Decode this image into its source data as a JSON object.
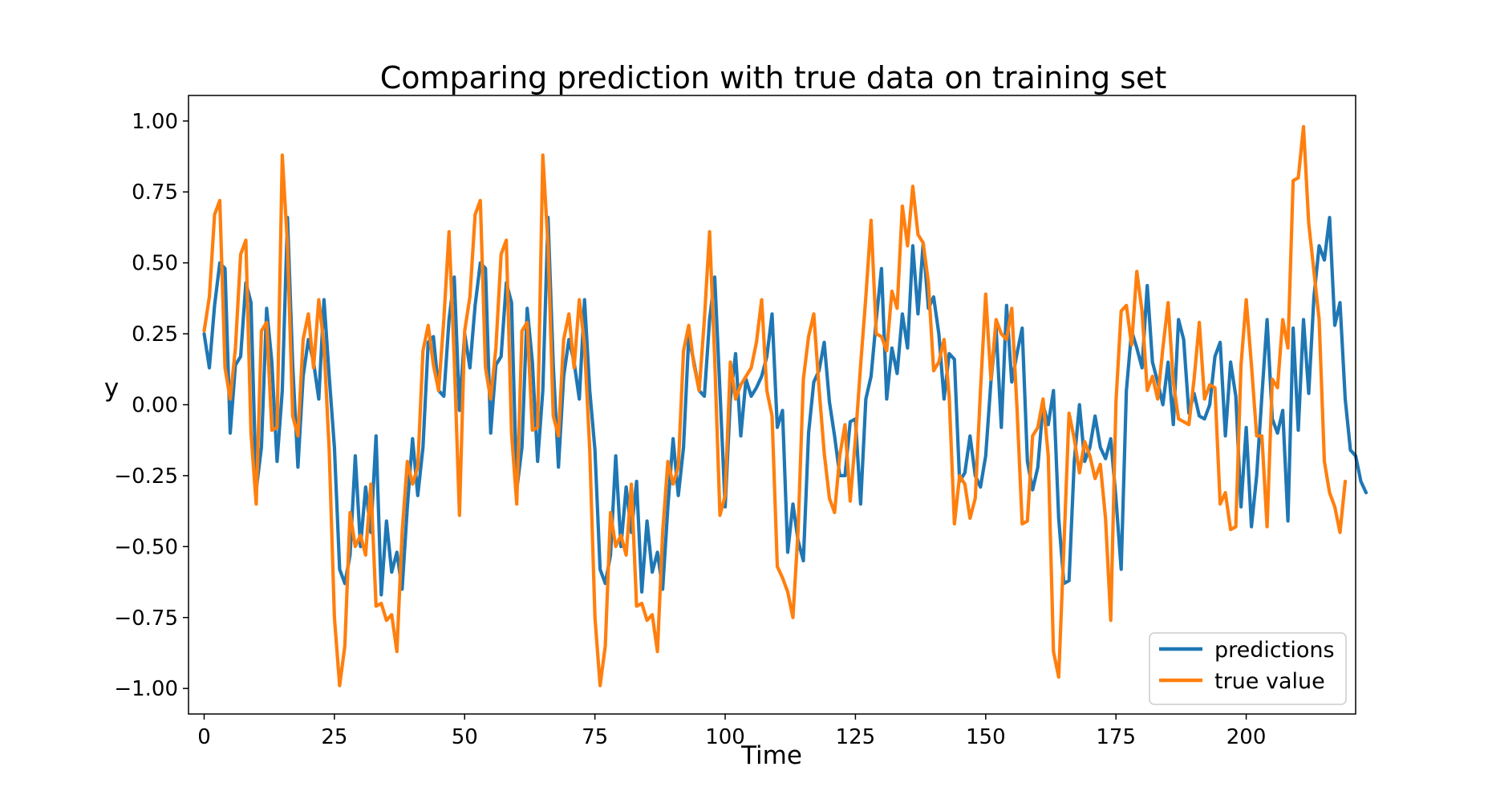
{
  "chart_data": {
    "type": "line",
    "title": "Comparing prediction with true data on training set",
    "xlabel": "Time",
    "ylabel": "y",
    "xlim": [
      -3,
      221
    ],
    "ylim": [
      -1.09,
      1.09
    ],
    "xticks": [
      0,
      25,
      50,
      75,
      100,
      125,
      150,
      175,
      200
    ],
    "xtick_labels": [
      "0",
      "25",
      "50",
      "75",
      "100",
      "125",
      "150",
      "175",
      "200"
    ],
    "yticks": [
      1.0,
      0.75,
      0.5,
      0.25,
      0.0,
      -0.25,
      -0.5,
      -0.75,
      -1.0
    ],
    "ytick_labels": [
      "1.00",
      "0.75",
      "0.50",
      "0.25",
      "0.00",
      "−0.25",
      "−0.50",
      "−0.75",
      "−1.00"
    ],
    "grid": false,
    "legend_position": "lower-right",
    "series": [
      {
        "name": "predictions",
        "color": "#1f77b4",
        "x_start": 0,
        "values": [
          0.25,
          0.13,
          0.35,
          0.5,
          0.48,
          -0.1,
          0.14,
          0.17,
          0.43,
          0.36,
          -0.3,
          -0.15,
          0.34,
          0.15,
          -0.2,
          0.05,
          0.66,
          0.14,
          -0.22,
          0.1,
          0.23,
          0.15,
          0.02,
          0.37,
          0.1,
          -0.15,
          -0.58,
          -0.63,
          -0.53,
          -0.18,
          -0.5,
          -0.29,
          -0.45,
          -0.11,
          -0.67,
          -0.41,
          -0.59,
          -0.52,
          -0.65,
          -0.36,
          -0.12,
          -0.32,
          -0.15,
          0.22,
          0.24,
          0.05,
          0.03,
          0.3,
          0.45,
          -0.02,
          0.25,
          0.13,
          0.35,
          0.5,
          0.48,
          -0.1,
          0.14,
          0.17,
          0.43,
          0.36,
          -0.3,
          -0.15,
          0.34,
          0.15,
          -0.2,
          0.05,
          0.66,
          0.14,
          -0.22,
          0.1,
          0.23,
          0.15,
          0.02,
          0.37,
          0.05,
          -0.16,
          -0.58,
          -0.63,
          -0.53,
          -0.18,
          -0.5,
          -0.29,
          -0.45,
          -0.27,
          -0.66,
          -0.41,
          -0.59,
          -0.52,
          -0.65,
          -0.36,
          -0.12,
          -0.32,
          -0.15,
          0.24,
          0.15,
          0.05,
          0.03,
          0.3,
          0.45,
          0.05,
          -0.36,
          0.02,
          0.18,
          -0.11,
          0.09,
          0.03,
          0.06,
          0.1,
          0.17,
          0.32,
          -0.08,
          -0.02,
          -0.52,
          -0.35,
          -0.48,
          -0.55,
          -0.1,
          0.08,
          0.12,
          0.22,
          0.01,
          -0.11,
          -0.25,
          -0.25,
          -0.06,
          -0.05,
          -0.35,
          0.02,
          0.1,
          0.3,
          0.48,
          0.02,
          0.2,
          0.11,
          0.32,
          0.2,
          0.56,
          0.32,
          0.57,
          0.34,
          0.38,
          0.25,
          0.02,
          0.18,
          0.16,
          -0.27,
          -0.24,
          -0.11,
          -0.25,
          -0.29,
          -0.18,
          0.08,
          0.27,
          -0.08,
          0.35,
          0.08,
          0.18,
          0.27,
          -0.2,
          -0.3,
          -0.22,
          0.0,
          -0.07,
          0.05,
          -0.4,
          -0.63,
          -0.62,
          -0.2,
          0.0,
          -0.2,
          -0.15,
          -0.04,
          -0.15,
          -0.19,
          -0.12,
          -0.33,
          -0.58,
          0.05,
          0.26,
          0.2,
          0.13,
          0.42,
          0.15,
          0.08,
          0.0,
          0.15,
          -0.07,
          0.3,
          0.23,
          -0.03,
          0.04,
          -0.04,
          -0.05,
          0.0,
          0.17,
          0.22,
          -0.11,
          0.15,
          0.03,
          -0.36,
          -0.08,
          -0.43,
          -0.25,
          0.03,
          0.3,
          -0.05,
          -0.1,
          -0.02,
          -0.41,
          0.27,
          -0.09,
          0.3,
          0.04,
          0.38,
          0.56,
          0.51,
          0.66,
          0.28,
          0.36,
          0.02,
          -0.16,
          -0.18,
          -0.27,
          -0.31
        ]
      },
      {
        "name": "true value",
        "color": "#ff7f0e",
        "x_start": 0,
        "values": [
          0.26,
          0.38,
          0.67,
          0.72,
          0.13,
          0.02,
          0.2,
          0.53,
          0.58,
          -0.1,
          -0.35,
          0.26,
          0.29,
          -0.09,
          -0.08,
          0.88,
          0.56,
          -0.04,
          -0.11,
          0.23,
          0.32,
          0.13,
          0.37,
          0.21,
          -0.16,
          -0.75,
          -0.99,
          -0.85,
          -0.38,
          -0.5,
          -0.46,
          -0.53,
          -0.28,
          -0.71,
          -0.7,
          -0.76,
          -0.74,
          -0.87,
          -0.45,
          -0.2,
          -0.28,
          -0.22,
          0.19,
          0.28,
          0.14,
          0.05,
          0.3,
          0.61,
          0.16,
          -0.39,
          0.26,
          0.38,
          0.67,
          0.72,
          0.13,
          0.02,
          0.2,
          0.53,
          0.58,
          -0.1,
          -0.35,
          0.26,
          0.29,
          -0.09,
          -0.08,
          0.88,
          0.56,
          -0.04,
          -0.11,
          0.23,
          0.32,
          0.13,
          0.37,
          0.21,
          -0.16,
          -0.75,
          -0.99,
          -0.85,
          -0.38,
          -0.5,
          -0.46,
          -0.53,
          -0.28,
          -0.71,
          -0.7,
          -0.76,
          -0.74,
          -0.87,
          -0.45,
          -0.2,
          -0.28,
          -0.22,
          0.19,
          0.28,
          0.14,
          0.05,
          0.3,
          0.61,
          0.16,
          -0.39,
          -0.32,
          0.15,
          0.02,
          0.07,
          0.1,
          0.13,
          0.22,
          0.37,
          0.05,
          -0.04,
          -0.57,
          -0.61,
          -0.66,
          -0.75,
          -0.44,
          0.09,
          0.24,
          0.32,
          0.06,
          -0.17,
          -0.33,
          -0.38,
          -0.18,
          -0.07,
          -0.34,
          -0.12,
          0.14,
          0.38,
          0.65,
          0.25,
          0.24,
          0.19,
          0.4,
          0.34,
          0.7,
          0.56,
          0.77,
          0.6,
          0.57,
          0.43,
          0.12,
          0.15,
          0.23,
          0.03,
          -0.42,
          -0.25,
          -0.28,
          -0.4,
          -0.33,
          0.05,
          0.39,
          0.09,
          0.3,
          0.25,
          0.23,
          0.34,
          -0.01,
          -0.42,
          -0.41,
          -0.11,
          -0.08,
          0.02,
          -0.18,
          -0.87,
          -0.96,
          -0.5,
          -0.03,
          -0.12,
          -0.24,
          -0.13,
          -0.18,
          -0.26,
          -0.21,
          -0.4,
          -0.76,
          0.01,
          0.33,
          0.35,
          0.21,
          0.47,
          0.33,
          0.05,
          0.1,
          0.02,
          0.2,
          0.36,
          0.08,
          -0.05,
          -0.06,
          -0.07,
          0.09,
          0.29,
          0.02,
          0.07,
          0.06,
          -0.35,
          -0.31,
          -0.44,
          -0.43,
          0.14,
          0.37,
          0.14,
          -0.11,
          -0.11,
          -0.43,
          0.09,
          0.06,
          0.3,
          0.2,
          0.79,
          0.8,
          0.98,
          0.64,
          0.47,
          0.3,
          -0.2,
          -0.31,
          -0.36,
          -0.45,
          -0.27
        ]
      }
    ]
  }
}
